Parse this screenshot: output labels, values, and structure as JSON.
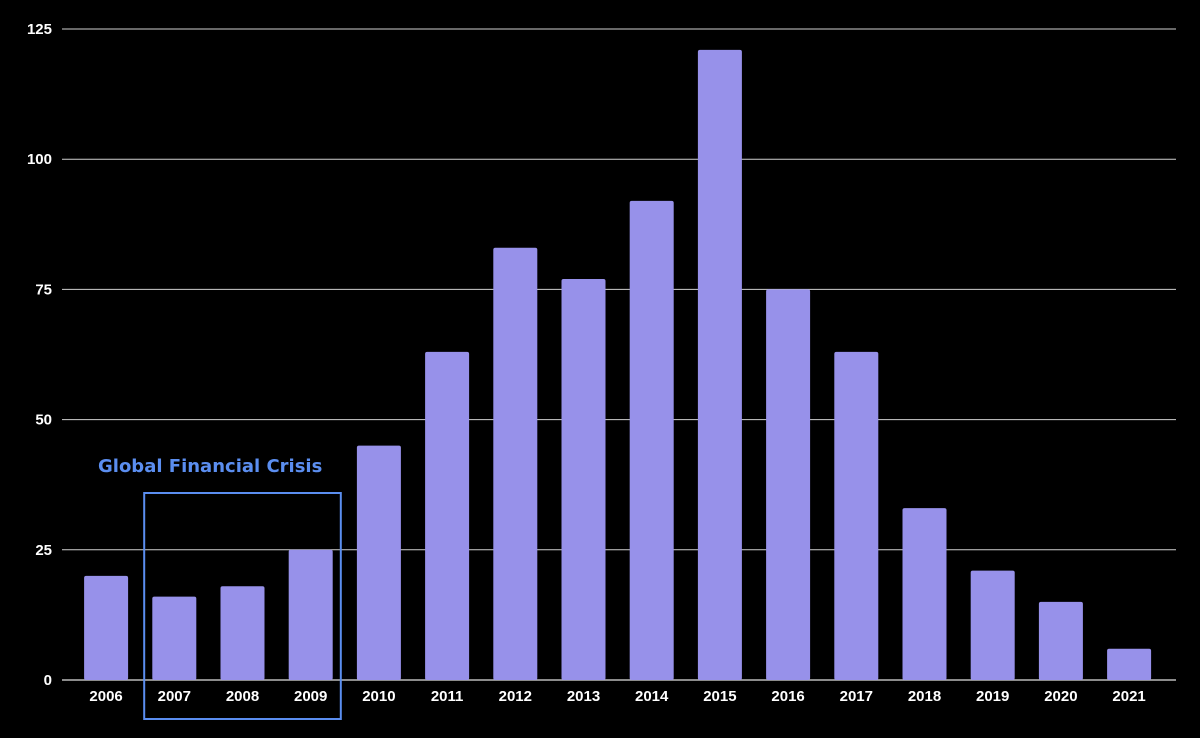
{
  "chart_data": {
    "type": "bar",
    "title": "",
    "xlabel": "",
    "ylabel": "",
    "categories": [
      "2006",
      "2007",
      "2008",
      "2009",
      "2010",
      "2011",
      "2012",
      "2013",
      "2014",
      "2015",
      "2016",
      "2017",
      "2018",
      "2019",
      "2020",
      "2021"
    ],
    "values": [
      20,
      16,
      18,
      25,
      45,
      63,
      83,
      77,
      92,
      121,
      75,
      63,
      33,
      21,
      15,
      6
    ],
    "ylim": [
      0,
      125
    ],
    "yticks": [
      0,
      25,
      50,
      75,
      100,
      125
    ],
    "grid": true,
    "legend": "none",
    "colors": {
      "background": "#000000",
      "bar": "#9791ea",
      "grid": "#d0d0d0",
      "text": "#ffffff",
      "annotation": "#5b8ef0"
    },
    "annotations": [
      {
        "text": "Global Financial Crisis",
        "categories": [
          "2007",
          "2008",
          "2009"
        ]
      }
    ]
  }
}
